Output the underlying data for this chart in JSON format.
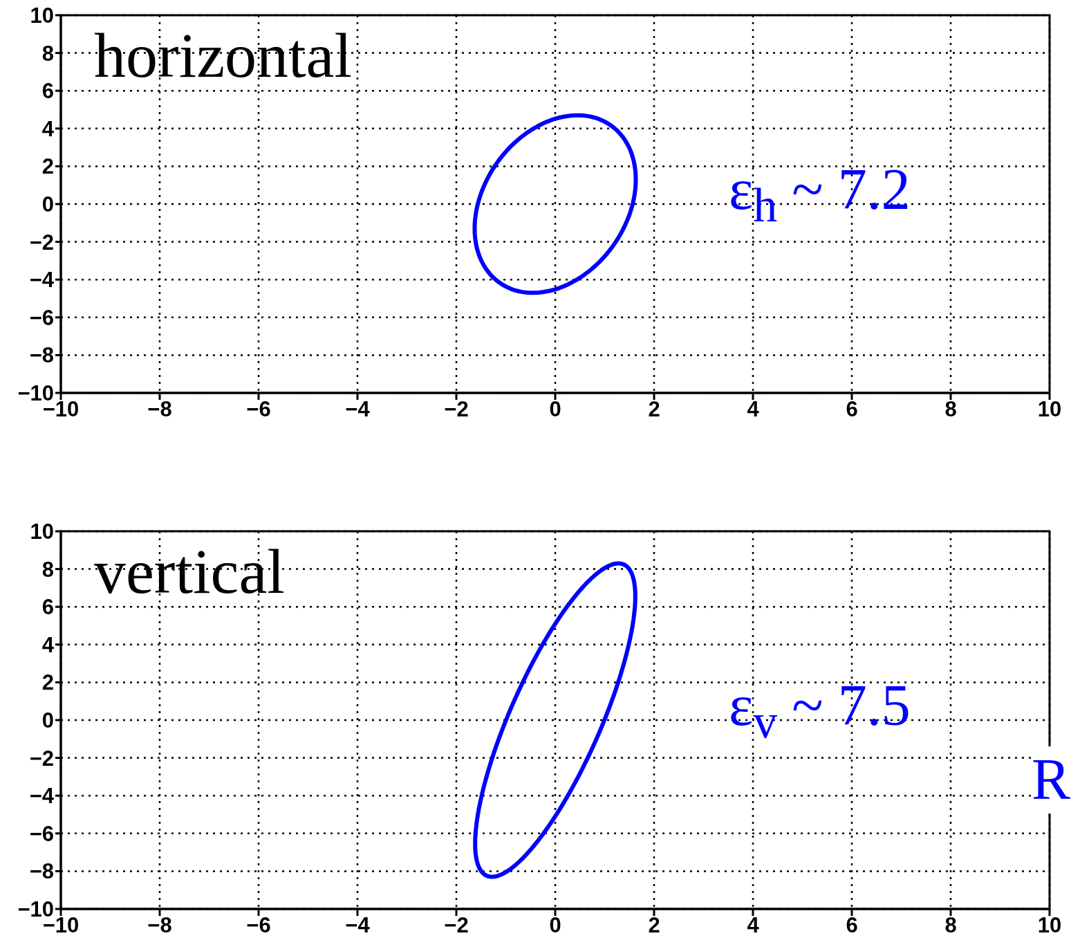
{
  "chart_data": [
    {
      "type": "line",
      "annotations": [
        "horizontal",
        "ε$_{h}$ ~ 7.2"
      ],
      "xlim": [
        -10,
        10
      ],
      "ylim": [
        -10,
        10
      ],
      "xticks": [
        {
          "value": -10,
          "label": "−10"
        },
        {
          "value": -8,
          "label": "−8"
        },
        {
          "value": -6,
          "label": "−6"
        },
        {
          "value": -4,
          "label": "−4"
        },
        {
          "value": -2,
          "label": "−2"
        },
        0,
        2,
        4,
        6,
        8,
        10
      ],
      "yticks": [
        {
          "value": -10,
          "label": "−10"
        },
        {
          "value": -8,
          "label": "−8"
        },
        {
          "value": -6,
          "label": "−6"
        },
        {
          "value": -4,
          "label": "−4"
        },
        {
          "value": -2,
          "label": "−2"
        },
        0,
        2,
        4,
        6,
        8,
        10
      ],
      "grid": true
    },
    {
      "type": "line",
      "annotations": [
        "vertical",
        "ε$_{v}$ ~ 7.5",
        "R"
      ],
      "xlim": [
        -10,
        10
      ],
      "ylim": [
        -10,
        10
      ],
      "xticks": [
        {
          "value": -10,
          "label": "−10"
        },
        {
          "value": -8,
          "label": "−8"
        },
        {
          "value": -6,
          "label": "−6"
        },
        {
          "value": -4,
          "label": "−4"
        },
        {
          "value": -2,
          "label": "−2"
        },
        0,
        2,
        4,
        6,
        8,
        10
      ],
      "yticks": [
        {
          "value": -10,
          "label": "−10"
        },
        {
          "value": -8,
          "label": "−8"
        },
        {
          "value": -6,
          "label": "−6"
        },
        {
          "value": -4,
          "label": "−4"
        },
        {
          "value": -2,
          "label": "−2"
        },
        0,
        2,
        4,
        6,
        8,
        10
      ],
      "grid": true
    }
  ]
}
